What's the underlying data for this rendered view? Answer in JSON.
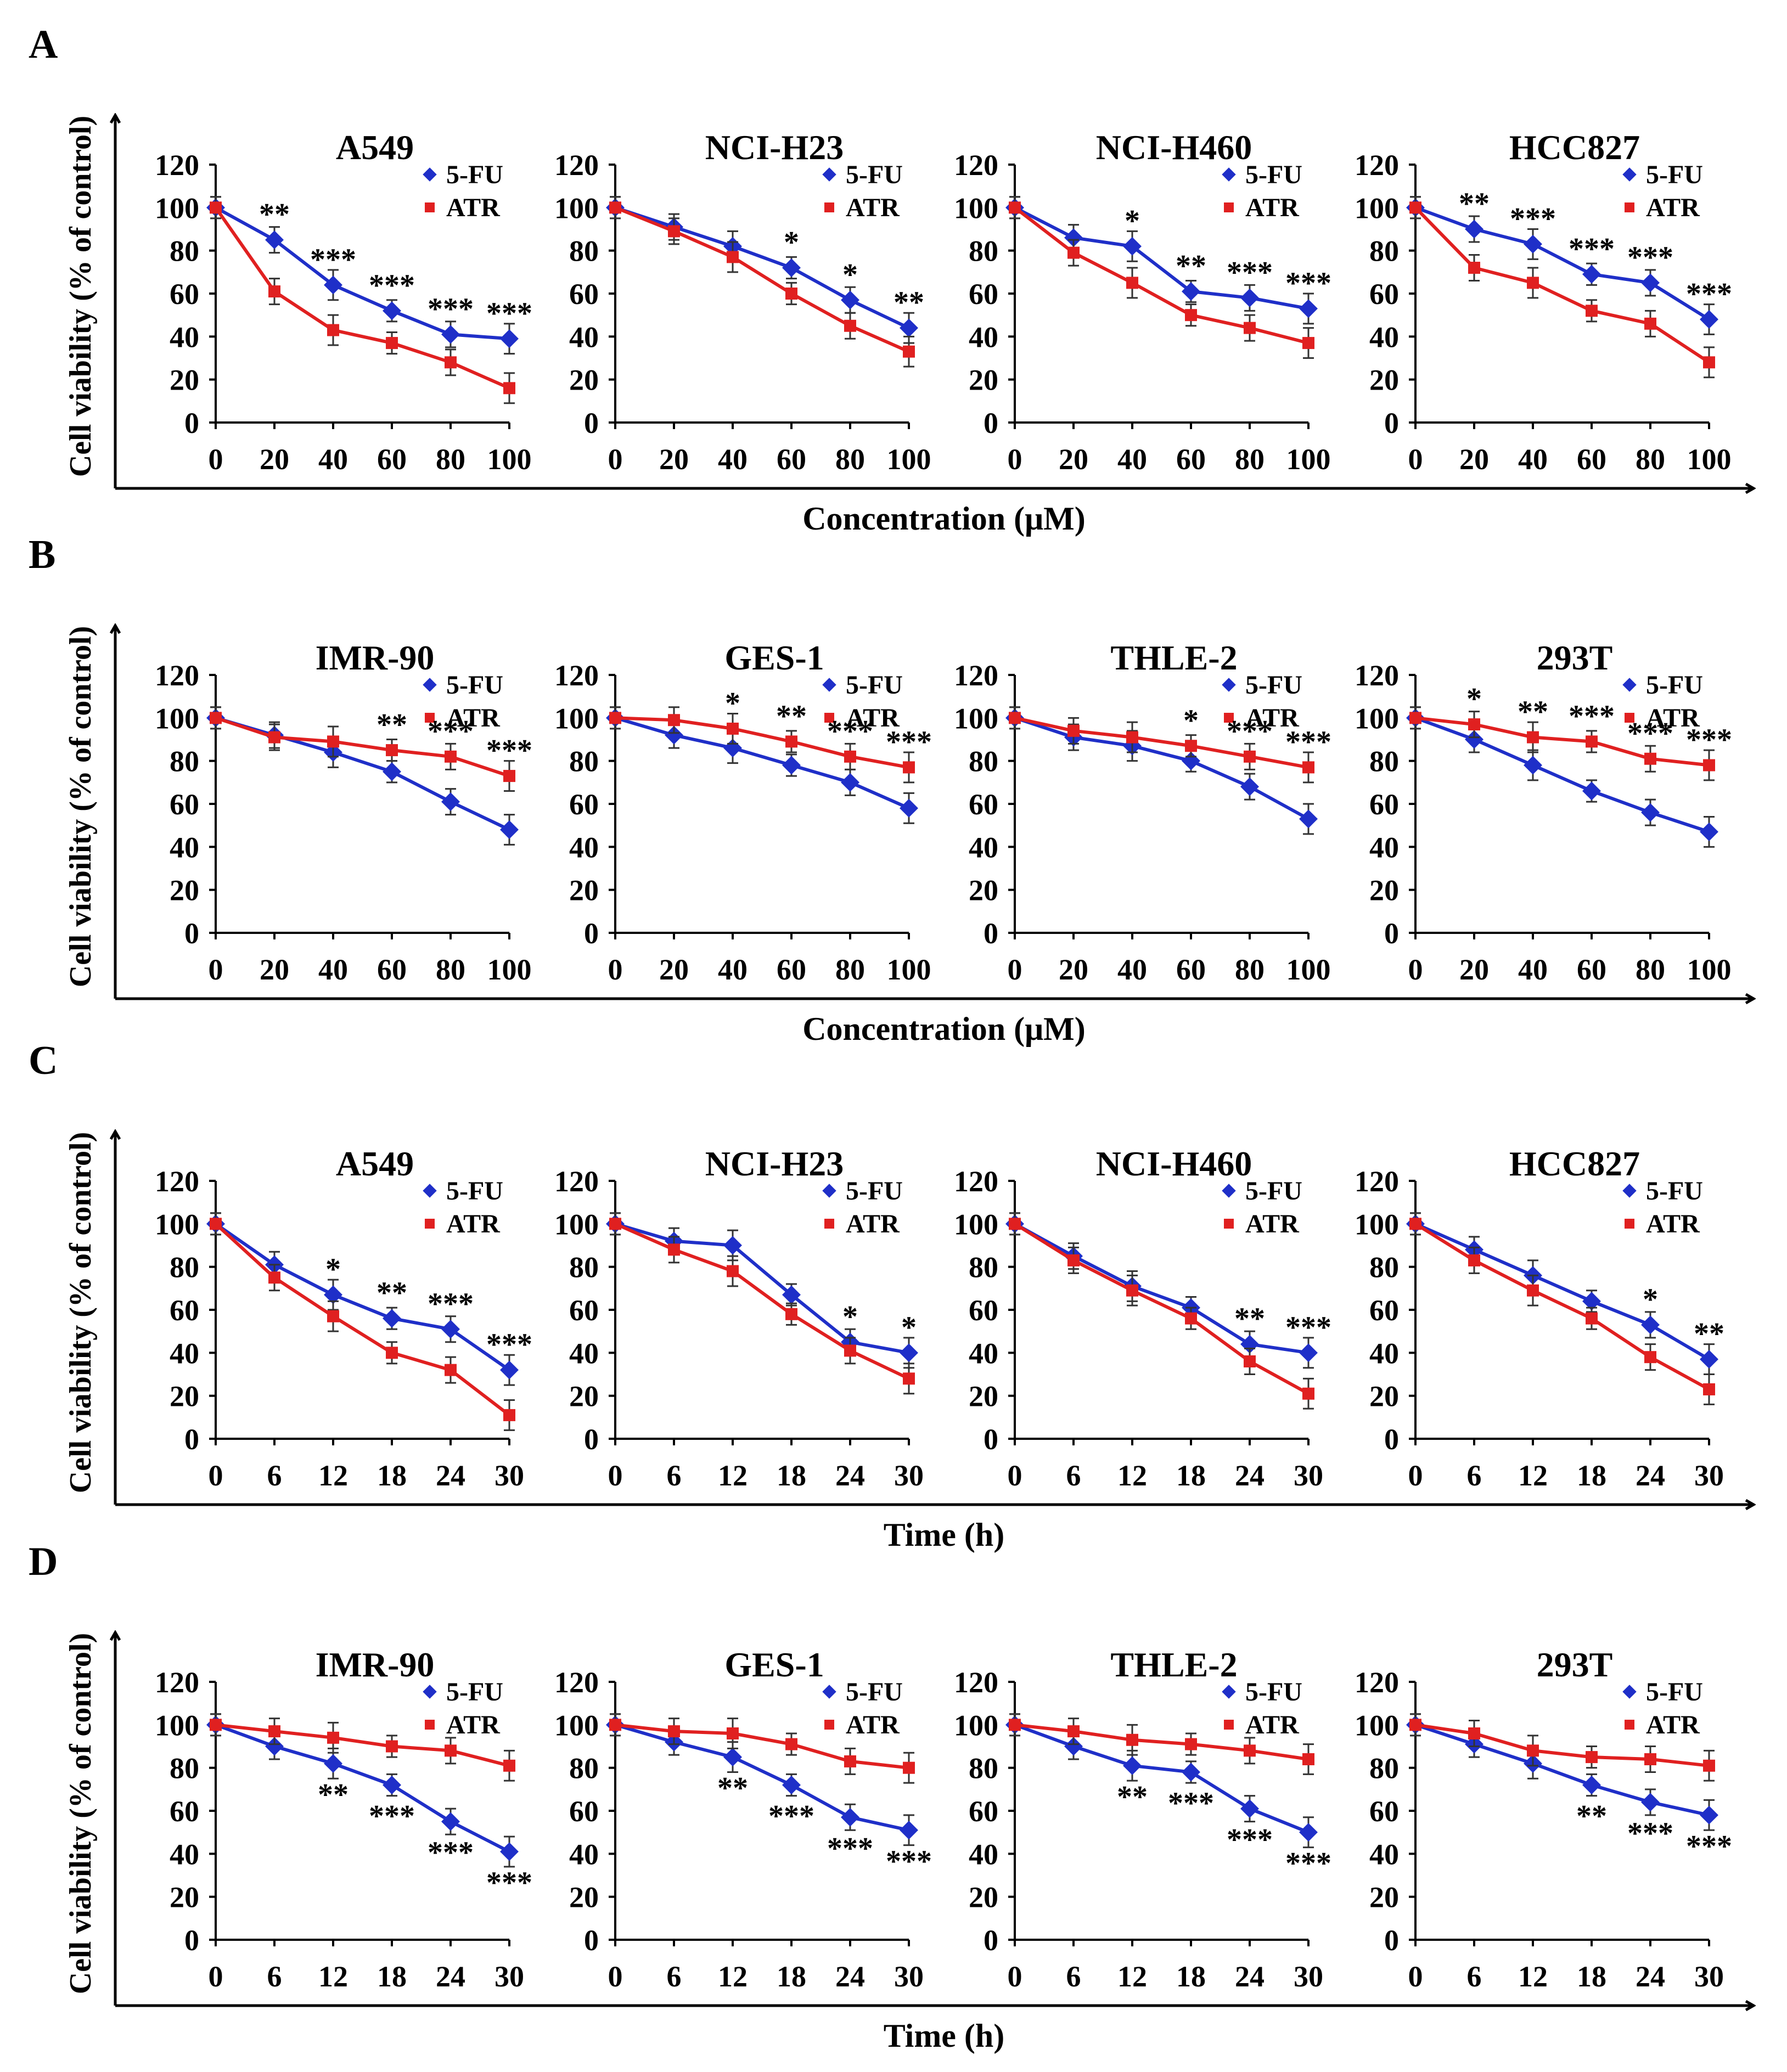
{
  "figure": {
    "y_label": "Cell viability (% of control)",
    "legend_labels": [
      "5-FU",
      "ATR"
    ],
    "series_colors": {
      "5-FU": "#1f2fc8",
      "ATR": "#e02020"
    }
  },
  "chart_data": [
    {
      "label": "A",
      "xlabel": "Concentration (μM)",
      "xticks": [
        "0",
        "20",
        "40",
        "60",
        "80",
        "100"
      ],
      "yticks": [
        "0",
        "20",
        "40",
        "60",
        "80",
        "100",
        "120"
      ],
      "ylim": [
        0,
        120
      ],
      "panels": [
        {
          "title": "A549",
          "x": [
            0,
            20,
            40,
            60,
            80,
            100
          ],
          "series": [
            {
              "name": "5-FU",
              "values": [
                100,
                85,
                64,
                52,
                41,
                39
              ]
            },
            {
              "name": "ATR",
              "values": [
                100,
                61,
                43,
                37,
                28,
                16
              ]
            }
          ],
          "stars": [
            "",
            "**",
            "***",
            "***",
            "***",
            "***"
          ],
          "star_pos": "above"
        },
        {
          "title": "NCI-H23",
          "x": [
            0,
            20,
            40,
            60,
            80,
            100
          ],
          "series": [
            {
              "name": "5-FU",
              "values": [
                100,
                91,
                82,
                72,
                57,
                44
              ]
            },
            {
              "name": "ATR",
              "values": [
                100,
                89,
                77,
                60,
                45,
                33
              ]
            }
          ],
          "stars": [
            "",
            "",
            "",
            "*",
            "*",
            "**"
          ],
          "star_pos": "above"
        },
        {
          "title": "NCI-H460",
          "x": [
            0,
            20,
            40,
            60,
            80,
            100
          ],
          "series": [
            {
              "name": "5-FU",
              "values": [
                100,
                86,
                82,
                61,
                58,
                53
              ]
            },
            {
              "name": "ATR",
              "values": [
                100,
                79,
                65,
                50,
                44,
                37
              ]
            }
          ],
          "stars": [
            "",
            "",
            "*",
            "**",
            "***",
            "***"
          ],
          "star_pos": "above"
        },
        {
          "title": "HCC827",
          "x": [
            0,
            20,
            40,
            60,
            80,
            100
          ],
          "series": [
            {
              "name": "5-FU",
              "values": [
                100,
                90,
                83,
                69,
                65,
                48
              ]
            },
            {
              "name": "ATR",
              "values": [
                100,
                72,
                65,
                52,
                46,
                28
              ]
            }
          ],
          "stars": [
            "",
            "**",
            "***",
            "***",
            "***",
            "***"
          ],
          "star_pos": "above"
        }
      ]
    },
    {
      "label": "B",
      "xlabel": "Concentration (μM)",
      "xticks": [
        "0",
        "20",
        "40",
        "60",
        "80",
        "100"
      ],
      "yticks": [
        "0",
        "20",
        "40",
        "60",
        "80",
        "100",
        "120"
      ],
      "ylim": [
        0,
        120
      ],
      "panels": [
        {
          "title": "IMR-90",
          "x": [
            0,
            20,
            40,
            60,
            80,
            100
          ],
          "series": [
            {
              "name": "5-FU",
              "values": [
                100,
                92,
                84,
                75,
                61,
                48
              ]
            },
            {
              "name": "ATR",
              "values": [
                100,
                91,
                89,
                85,
                82,
                73
              ]
            }
          ],
          "stars": [
            "",
            "",
            "",
            "**",
            "***",
            "***"
          ],
          "star_pos": "above"
        },
        {
          "title": "GES-1",
          "x": [
            0,
            20,
            40,
            60,
            80,
            100
          ],
          "series": [
            {
              "name": "5-FU",
              "values": [
                100,
                92,
                86,
                78,
                70,
                58
              ]
            },
            {
              "name": "ATR",
              "values": [
                100,
                99,
                95,
                89,
                82,
                77
              ]
            }
          ],
          "stars": [
            "",
            "",
            "*",
            "**",
            "***",
            "***"
          ],
          "star_pos": "above"
        },
        {
          "title": "THLE-2",
          "x": [
            0,
            20,
            40,
            60,
            80,
            100
          ],
          "series": [
            {
              "name": "5-FU",
              "values": [
                100,
                91,
                87,
                80,
                68,
                53
              ]
            },
            {
              "name": "ATR",
              "values": [
                100,
                94,
                91,
                87,
                82,
                77
              ]
            }
          ],
          "stars": [
            "",
            "",
            "",
            "*",
            "***",
            "***"
          ],
          "star_pos": "above"
        },
        {
          "title": "293T",
          "x": [
            0,
            20,
            40,
            60,
            80,
            100
          ],
          "series": [
            {
              "name": "5-FU",
              "values": [
                100,
                90,
                78,
                66,
                56,
                47
              ]
            },
            {
              "name": "ATR",
              "values": [
                100,
                97,
                91,
                89,
                81,
                78
              ]
            }
          ],
          "stars": [
            "",
            "*",
            "**",
            "***",
            "***",
            "***"
          ],
          "star_pos": "above"
        }
      ]
    },
    {
      "label": "C",
      "xlabel": "Time (h)",
      "xticks": [
        "0",
        "6",
        "12",
        "18",
        "24",
        "30"
      ],
      "yticks": [
        "0",
        "20",
        "40",
        "60",
        "80",
        "100",
        "120"
      ],
      "ylim": [
        0,
        120
      ],
      "panels": [
        {
          "title": "A549",
          "x": [
            0,
            6,
            12,
            18,
            24,
            30
          ],
          "series": [
            {
              "name": "5-FU",
              "values": [
                100,
                81,
                67,
                56,
                51,
                32
              ]
            },
            {
              "name": "ATR",
              "values": [
                100,
                75,
                57,
                40,
                32,
                11
              ]
            }
          ],
          "stars": [
            "",
            "",
            "*",
            "**",
            "***",
            "***"
          ],
          "star_pos": "above"
        },
        {
          "title": "NCI-H23",
          "x": [
            0,
            6,
            12,
            18,
            24,
            30
          ],
          "series": [
            {
              "name": "5-FU",
              "values": [
                100,
                92,
                90,
                67,
                45,
                40
              ]
            },
            {
              "name": "ATR",
              "values": [
                100,
                88,
                78,
                58,
                41,
                28
              ]
            }
          ],
          "stars": [
            "",
            "",
            "",
            "",
            "*",
            "*"
          ],
          "star_pos": "above"
        },
        {
          "title": "NCI-H460",
          "x": [
            0,
            6,
            12,
            18,
            24,
            30
          ],
          "series": [
            {
              "name": "5-FU",
              "values": [
                100,
                85,
                71,
                61,
                44,
                40
              ]
            },
            {
              "name": "ATR",
              "values": [
                100,
                83,
                69,
                56,
                36,
                21
              ]
            }
          ],
          "stars": [
            "",
            "",
            "",
            "",
            "**",
            "***"
          ],
          "star_pos": "above"
        },
        {
          "title": "HCC827",
          "x": [
            0,
            6,
            12,
            18,
            24,
            30
          ],
          "series": [
            {
              "name": "5-FU",
              "values": [
                100,
                88,
                76,
                64,
                53,
                37
              ]
            },
            {
              "name": "ATR",
              "values": [
                100,
                83,
                69,
                56,
                38,
                23
              ]
            }
          ],
          "stars": [
            "",
            "",
            "",
            "",
            "*",
            "**"
          ],
          "star_pos": "above"
        }
      ]
    },
    {
      "label": "D",
      "xlabel": "Time (h)",
      "xticks": [
        "0",
        "6",
        "12",
        "18",
        "24",
        "30"
      ],
      "yticks": [
        "0",
        "20",
        "40",
        "60",
        "80",
        "100",
        "120"
      ],
      "ylim": [
        0,
        120
      ],
      "panels": [
        {
          "title": "IMR-90",
          "x": [
            0,
            6,
            12,
            18,
            24,
            30
          ],
          "series": [
            {
              "name": "5-FU",
              "values": [
                100,
                90,
                82,
                72,
                55,
                41
              ]
            },
            {
              "name": "ATR",
              "values": [
                100,
                97,
                94,
                90,
                88,
                81
              ]
            }
          ],
          "stars": [
            "",
            "",
            "**",
            "***",
            "***",
            "***"
          ],
          "star_pos": "below"
        },
        {
          "title": "GES-1",
          "x": [
            0,
            6,
            12,
            18,
            24,
            30
          ],
          "series": [
            {
              "name": "5-FU",
              "values": [
                100,
                92,
                85,
                72,
                57,
                51
              ]
            },
            {
              "name": "ATR",
              "values": [
                100,
                97,
                96,
                91,
                83,
                80
              ]
            }
          ],
          "stars": [
            "",
            "",
            "**",
            "***",
            "***",
            "***"
          ],
          "star_pos": "below"
        },
        {
          "title": "THLE-2",
          "x": [
            0,
            6,
            12,
            18,
            24,
            30
          ],
          "series": [
            {
              "name": "5-FU",
              "values": [
                100,
                90,
                81,
                78,
                61,
                50
              ]
            },
            {
              "name": "ATR",
              "values": [
                100,
                97,
                93,
                91,
                88,
                84
              ]
            }
          ],
          "stars": [
            "",
            "",
            "**",
            "***",
            "***",
            "***"
          ],
          "star_pos": "below"
        },
        {
          "title": "293T",
          "x": [
            0,
            6,
            12,
            18,
            24,
            30
          ],
          "series": [
            {
              "name": "5-FU",
              "values": [
                100,
                91,
                82,
                72,
                64,
                58
              ]
            },
            {
              "name": "ATR",
              "values": [
                100,
                96,
                88,
                85,
                84,
                81
              ]
            }
          ],
          "stars": [
            "",
            "",
            "",
            "**",
            "***",
            "***"
          ],
          "star_pos": "below"
        }
      ]
    }
  ]
}
